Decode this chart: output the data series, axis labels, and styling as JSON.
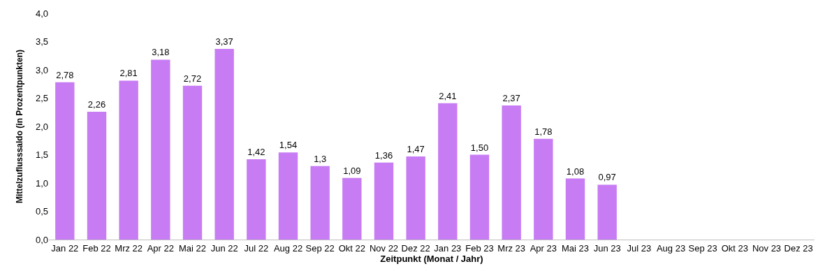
{
  "chart_data": {
    "type": "bar",
    "xlabel": "Zeitpunkt (Monat / Jahr)",
    "ylabel": "Mittelzuflusssaldo (in Prozentpunkten)",
    "categories": [
      "Jan 22",
      "Feb 22",
      "Mrz 22",
      "Apr 22",
      "Mai 22",
      "Jun 22",
      "Jul 22",
      "Aug 22",
      "Sep 22",
      "Okt 22",
      "Nov 22",
      "Dez 22",
      "Jan 23",
      "Feb 23",
      "Mrz 23",
      "Apr 23",
      "Mai 23",
      "Jun 23",
      "Jul 23",
      "Aug 23",
      "Sep 23",
      "Okt 23",
      "Nov 23",
      "Dez 23"
    ],
    "values": [
      2.78,
      2.26,
      2.81,
      3.18,
      2.72,
      3.37,
      1.42,
      1.54,
      1.3,
      1.09,
      1.36,
      1.47,
      2.41,
      1.5,
      2.37,
      1.78,
      1.08,
      0.97,
      null,
      null,
      null,
      null,
      null,
      null
    ],
    "value_labels": [
      "2,78",
      "2,26",
      "2,81",
      "3,18",
      "2,72",
      "3,37",
      "1,42",
      "1,54",
      "1,3",
      "1,09",
      "1,36",
      "1,47",
      "2,41",
      "1,50",
      "2,37",
      "1,78",
      "1,08",
      "0,97",
      null,
      null,
      null,
      null,
      null,
      null
    ],
    "color": "#c77cf4",
    "ylim": [
      0,
      4
    ],
    "yticks": [
      {
        "value": 0,
        "label": "0,0"
      },
      {
        "value": 0.5,
        "label": "0,5"
      },
      {
        "value": 1,
        "label": "1,0"
      },
      {
        "value": 1.5,
        "label": "1,5"
      },
      {
        "value": 2,
        "label": "2,0"
      },
      {
        "value": 2.5,
        "label": "2,5"
      },
      {
        "value": 3,
        "label": "3,0"
      },
      {
        "value": 3.5,
        "label": "3,5"
      },
      {
        "value": 4,
        "label": "4,0"
      }
    ]
  }
}
